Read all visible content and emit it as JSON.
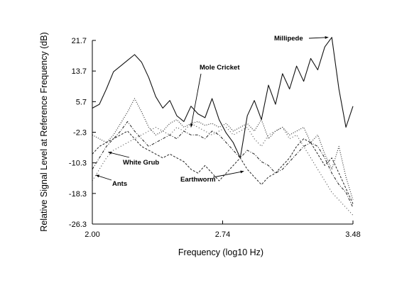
{
  "chart_data": {
    "type": "line",
    "title": "",
    "xlabel": "Frequency (log10 Hz)",
    "ylabel": "Relative Signal Level at Reference Frequency (dB)",
    "xlim": [
      2.0,
      3.48
    ],
    "ylim": [
      -26.3,
      24.0
    ],
    "xticks": [
      "2.00",
      "2.74",
      "3.48"
    ],
    "yticks": [
      "21.7",
      "13.7",
      "5.7",
      "-2.3",
      "-10.3",
      "-18.3",
      "-26.3"
    ],
    "grid": false,
    "legend": "none",
    "series": [
      {
        "name": "Millipede",
        "style": "solid",
        "x": [
          2.0,
          2.04,
          2.08,
          2.12,
          2.16,
          2.2,
          2.24,
          2.28,
          2.32,
          2.36,
          2.4,
          2.44,
          2.48,
          2.52,
          2.56,
          2.6,
          2.64,
          2.68,
          2.72,
          2.76,
          2.8,
          2.84,
          2.88,
          2.92,
          2.96,
          3.0,
          3.04,
          3.08,
          3.12,
          3.16,
          3.2,
          3.24,
          3.28,
          3.32,
          3.36,
          3.4,
          3.44,
          3.48
        ],
        "y": [
          4.0,
          5.0,
          9.0,
          13.5,
          15.0,
          16.5,
          18.0,
          16.0,
          12.0,
          7.0,
          4.0,
          6.0,
          2.0,
          0.5,
          4.5,
          2.5,
          1.5,
          6.5,
          1.0,
          -2.5,
          -5.0,
          -9.0,
          2.0,
          6.0,
          1.0,
          10.0,
          5.0,
          13.0,
          9.0,
          15.0,
          11.0,
          17.0,
          14.0,
          20.0,
          22.5,
          9.0,
          -1.0,
          4.5
        ]
      },
      {
        "name": "Mole Cricket",
        "style": "dotted",
        "x": [
          2.0,
          2.04,
          2.08,
          2.12,
          2.16,
          2.2,
          2.24,
          2.28,
          2.32,
          2.36,
          2.4,
          2.44,
          2.48,
          2.52,
          2.56,
          2.6,
          2.64,
          2.68,
          2.72,
          2.76,
          2.8,
          2.84,
          2.88,
          2.92,
          2.96,
          3.0,
          3.04,
          3.08,
          3.12,
          3.16,
          3.2,
          3.24,
          3.28,
          3.32,
          3.36,
          3.4,
          3.44,
          3.48
        ],
        "y": [
          -3.0,
          -4.0,
          -5.0,
          -3.0,
          0.0,
          3.0,
          6.5,
          3.0,
          -1.0,
          -3.0,
          -2.0,
          0.0,
          1.0,
          -1.0,
          0.0,
          0.5,
          -0.5,
          0.0,
          -1.0,
          0.0,
          -2.0,
          -1.0,
          0.0,
          -2.0,
          1.0,
          -4.0,
          -2.0,
          -1.0,
          -3.0,
          -2.0,
          -1.0,
          -5.0,
          -3.0,
          -8.0,
          -12.0,
          -6.0,
          -14.0,
          -20.0
        ]
      },
      {
        "name": "White Grub",
        "style": "dash-dot",
        "x": [
          2.0,
          2.04,
          2.08,
          2.12,
          2.16,
          2.2,
          2.24,
          2.28,
          2.32,
          2.36,
          2.4,
          2.44,
          2.48,
          2.52,
          2.56,
          2.6,
          2.64,
          2.68,
          2.72,
          2.76,
          2.8,
          2.84,
          2.88,
          2.92,
          2.96,
          3.0,
          3.04,
          3.08,
          3.12,
          3.16,
          3.2,
          3.24,
          3.28,
          3.32,
          3.36,
          3.4,
          3.44,
          3.48
        ],
        "y": [
          -12.0,
          -9.0,
          -6.0,
          -4.0,
          -2.0,
          0.5,
          -2.0,
          -4.0,
          -6.0,
          -5.0,
          -4.0,
          -3.0,
          -4.0,
          -2.0,
          -3.0,
          -3.0,
          -4.0,
          -2.0,
          -3.0,
          -5.0,
          -7.0,
          -9.0,
          -7.0,
          -8.0,
          -10.0,
          -11.0,
          -13.0,
          -12.0,
          -10.0,
          -8.0,
          -6.0,
          -5.0,
          -6.0,
          -9.0,
          -13.0,
          -16.0,
          -18.0,
          -22.0
        ]
      },
      {
        "name": "Earthworm",
        "style": "dashed",
        "x": [
          2.0,
          2.04,
          2.08,
          2.12,
          2.16,
          2.2,
          2.24,
          2.28,
          2.32,
          2.36,
          2.4,
          2.44,
          2.48,
          2.52,
          2.56,
          2.6,
          2.64,
          2.68,
          2.72,
          2.76,
          2.8,
          2.84,
          2.88,
          2.92,
          2.96,
          3.0,
          3.04,
          3.08,
          3.12,
          3.16,
          3.2,
          3.24,
          3.28,
          3.32,
          3.36,
          3.4,
          3.44,
          3.48
        ],
        "y": [
          -8.0,
          -6.0,
          -5.0,
          -4.0,
          -3.0,
          -2.0,
          -4.0,
          -6.0,
          -7.0,
          -8.0,
          -9.0,
          -8.0,
          -9.0,
          -10.0,
          -12.0,
          -13.0,
          -11.0,
          -13.0,
          -15.0,
          -13.0,
          -11.0,
          -9.0,
          -12.0,
          -14.0,
          -16.0,
          -14.0,
          -13.0,
          -11.0,
          -9.0,
          -6.0,
          -4.0,
          -5.0,
          -8.0,
          -11.0,
          -9.0,
          -13.0,
          -17.0,
          -21.0
        ]
      },
      {
        "name": "Ants",
        "style": "sparse-dotted",
        "x": [
          2.0,
          2.04,
          2.08,
          2.12,
          2.16,
          2.2,
          2.24,
          2.28,
          2.32,
          2.36,
          2.4,
          2.44,
          2.48,
          2.52,
          2.56,
          2.6,
          2.64,
          2.68,
          2.72,
          2.76,
          2.8,
          2.84,
          2.88,
          2.92,
          2.96,
          3.0,
          3.04,
          3.08,
          3.12,
          3.16,
          3.2,
          3.24,
          3.28,
          3.32,
          3.36,
          3.4,
          3.44,
          3.48
        ],
        "y": [
          -15.0,
          -12.0,
          -9.0,
          -7.0,
          -6.0,
          -5.0,
          -4.0,
          -3.0,
          -2.0,
          -1.0,
          -2.0,
          -3.0,
          -1.0,
          -2.0,
          0.0,
          -1.0,
          -2.0,
          -3.0,
          -2.0,
          -1.0,
          -3.0,
          -2.0,
          -1.0,
          -4.0,
          -6.0,
          -3.0,
          -2.0,
          -1.0,
          -4.0,
          -3.0,
          -6.0,
          -9.0,
          -12.0,
          -15.0,
          -18.0,
          -20.0,
          -22.0,
          -24.0
        ]
      }
    ],
    "annotations": [
      {
        "text": "Millipede",
        "x": 3.34,
        "y": 22.5
      },
      {
        "text": "Mole Cricket",
        "x": 2.56,
        "y": -1.0
      },
      {
        "text": "White Grub",
        "x": 2.09,
        "y": -7.5
      },
      {
        "text": "Earthworm",
        "x": 2.86,
        "y": -12.5
      },
      {
        "text": "Ants",
        "x": 2.02,
        "y": -13.5
      }
    ]
  }
}
